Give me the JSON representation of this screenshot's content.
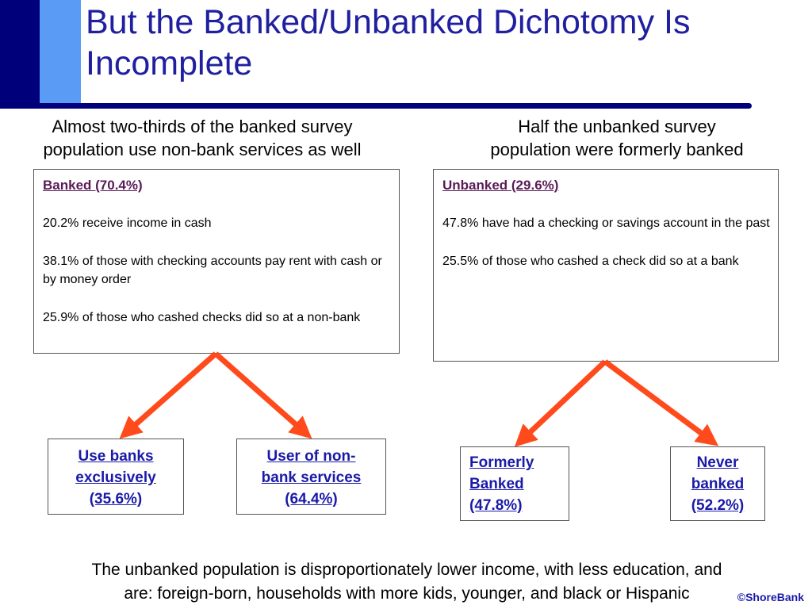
{
  "slide": {
    "title": "But the Banked/Unbanked Dichotomy Is Incomplete",
    "left_subtitle": "Almost two-thirds of the banked survey\npopulation use non-bank services as well",
    "right_subtitle": "Half the unbanked survey\npopulation were formerly banked",
    "footer": "The unbanked population is disproportionately lower income, with less education, and\nare: foreign-born, households with more kids, younger, and black or Hispanic",
    "copyright": "©ShoreBank"
  },
  "banked_panel": {
    "heading": "Banked (70.4%)",
    "items": [
      "20.2% receive income in cash",
      "38.1% of those with checking accounts pay rent with cash or by money order",
      "25.9% of those who cashed checks did so at a non-bank"
    ]
  },
  "unbanked_panel": {
    "heading": "Unbanked (29.6%)",
    "items": [
      "47.8% have had a checking or savings account in the past",
      "25.5% of those who cashed a check did so at a bank"
    ]
  },
  "nodes": {
    "use_banks": "Use banks\nexclusively\n(35.6%)",
    "non_bank": "User of non-\nbank services\n(64.4%)",
    "formerly": "Formerly\nBanked\n(47.8%)",
    "never": "Never\nbanked\n(52.2%)"
  },
  "colors": {
    "title": "#1f1fa0",
    "accent_dark": "#00007a",
    "accent_light": "#5a9cf5",
    "arrow": "#ff4a1c",
    "node_text": "#1a1aa8",
    "panel_heading": "#5a1a56"
  }
}
